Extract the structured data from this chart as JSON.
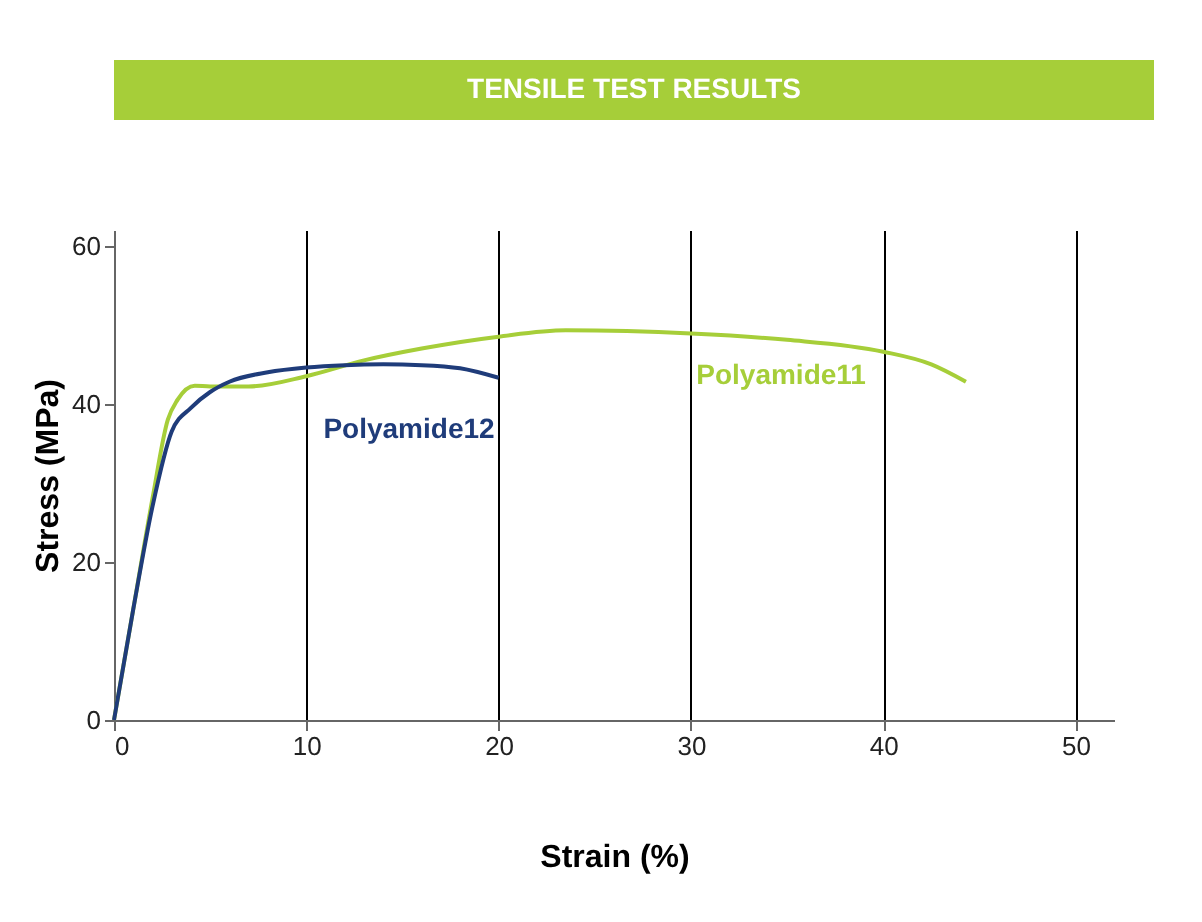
{
  "chart_data": {
    "type": "line",
    "title": "TENSILE TEST RESULTS",
    "xlabel": "Strain (%)",
    "ylabel": "Stress (MPa)",
    "series": [
      {
        "name": "Polyamide11",
        "color": "#a6ce39",
        "x": [
          0,
          1,
          2,
          2.8,
          3.3,
          4.2,
          5,
          7,
          10,
          13,
          16,
          20,
          23.5,
          30,
          35,
          40,
          42.5,
          44.3
        ],
        "values": [
          0,
          14,
          28,
          38,
          40.5,
          42.3,
          42.2,
          42.2,
          43.5,
          45.5,
          47,
          48.5,
          49.3,
          48.9,
          48.1,
          46.6,
          45,
          42.8
        ]
      },
      {
        "name": "Polyamide12",
        "color": "#1f3c7a",
        "x": [
          0,
          1,
          2,
          3,
          4,
          5,
          6,
          8,
          10,
          12,
          14,
          16,
          18,
          20
        ],
        "values": [
          0,
          14,
          27,
          36.5,
          39.5,
          41.5,
          42.8,
          44,
          44.6,
          44.9,
          45,
          44.9,
          44.5,
          43.3
        ]
      }
    ],
    "xlim": [
      0,
      52
    ],
    "xticks": [
      0,
      10,
      20,
      30,
      40,
      50
    ],
    "ylim": [
      0,
      62
    ],
    "yticks": [
      0,
      20,
      40,
      60
    ],
    "grid": "x"
  }
}
